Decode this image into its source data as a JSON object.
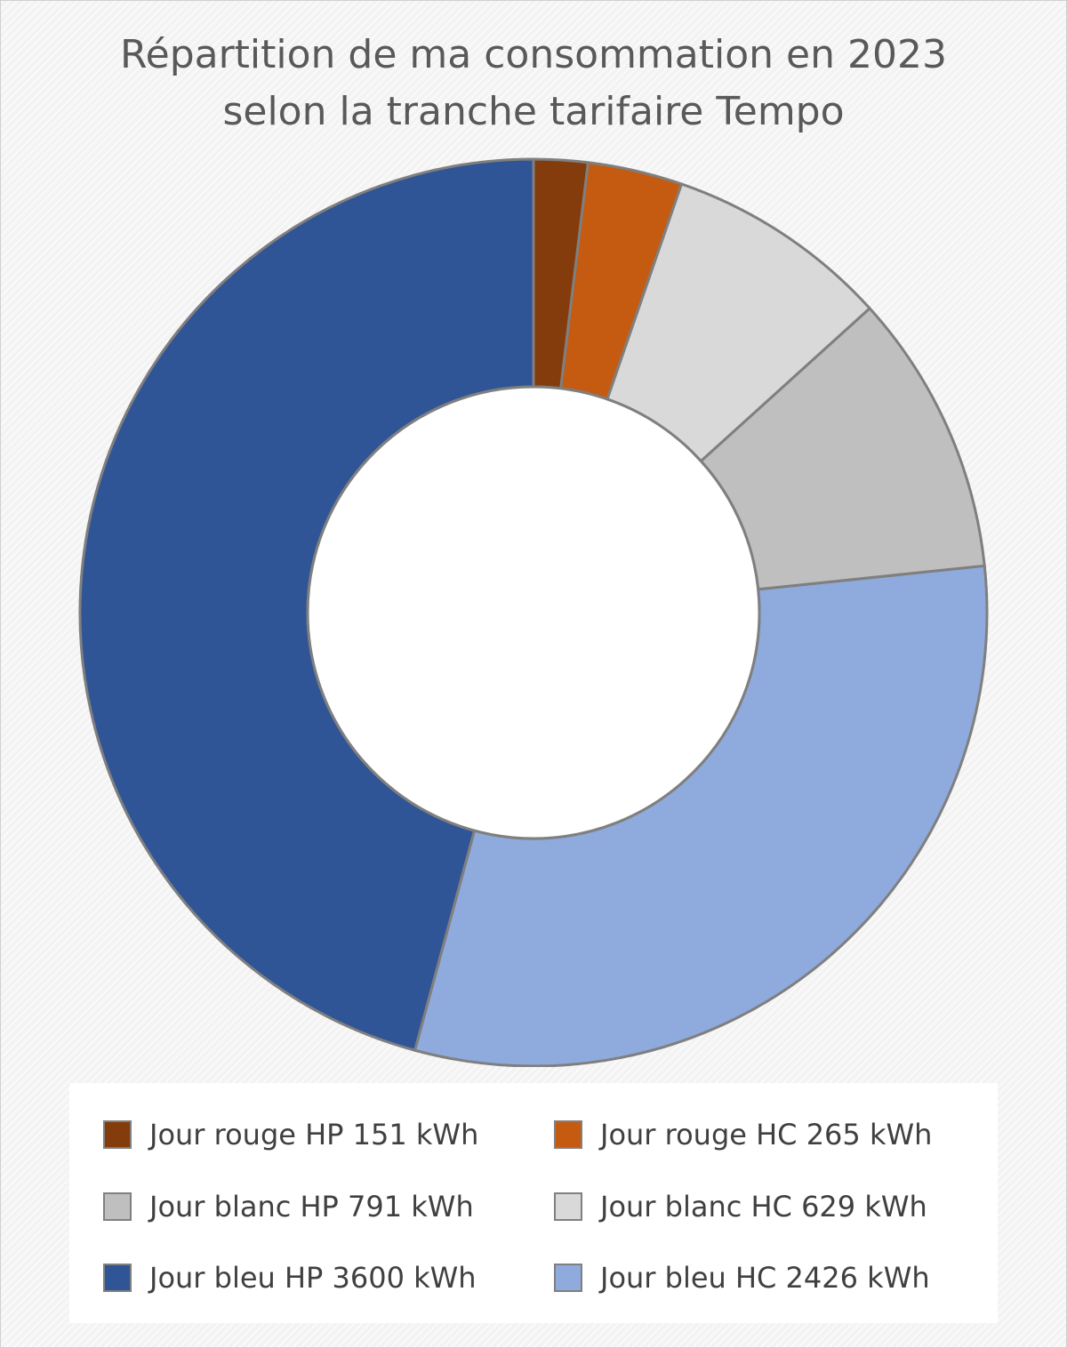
{
  "chart_data": {
    "type": "pie",
    "variant": "donut",
    "title_lines": [
      "Répartition de ma consommation en 2023",
      "selon la tranche tarifaire Tempo"
    ],
    "legend_position": "bottom",
    "start": "top",
    "direction": "counterclockwise",
    "slices": [
      {
        "label": "Jour bleu HP 3600 kWh",
        "value": 3600,
        "color": "#2F5597"
      },
      {
        "label": "Jour bleu HC 2426 kWh",
        "value": 2426,
        "color": "#8FAADC"
      },
      {
        "label": "Jour blanc HP 791 kWh",
        "value": 791,
        "color": "#BFBFBF"
      },
      {
        "label": "Jour blanc HC 629 kWh",
        "value": 629,
        "color": "#D9D9D9"
      },
      {
        "label": "Jour rouge HC 265 kWh",
        "value": 265,
        "color": "#C55A11"
      },
      {
        "label": "Jour rouge HP 151 kWh",
        "value": 151,
        "color": "#843C0C"
      }
    ],
    "legend_order": [
      "Jour rouge HP 151 kWh",
      "Jour rouge HC 265 kWh",
      "Jour blanc HP 791 kWh",
      "Jour blanc HC 629 kWh",
      "Jour bleu HP 3600 kWh",
      "Jour bleu HC 2426 kWh"
    ],
    "slice_border_color": "#7F7F7F",
    "hole_color": "#FFFFFF"
  }
}
